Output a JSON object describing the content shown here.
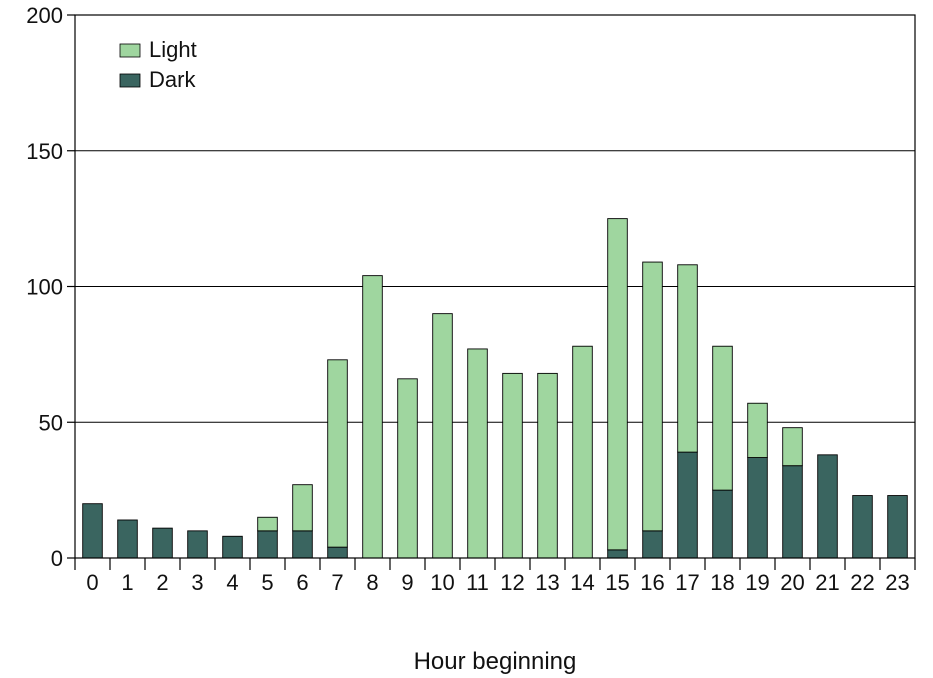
{
  "chart_data": {
    "type": "bar",
    "stacked": true,
    "title": "",
    "xlabel": "Hour beginning",
    "ylabel": "",
    "categories": [
      "0",
      "1",
      "2",
      "3",
      "4",
      "5",
      "6",
      "7",
      "8",
      "9",
      "10",
      "11",
      "12",
      "13",
      "14",
      "15",
      "16",
      "17",
      "18",
      "19",
      "20",
      "21",
      "22",
      "23"
    ],
    "ylim": [
      0,
      200
    ],
    "yticks": [
      0,
      50,
      100,
      150,
      200
    ],
    "yticklabels": [
      "0",
      "50",
      "100",
      "150",
      "200"
    ],
    "grid": "horizontal",
    "legend_position": "top-left",
    "series": [
      {
        "name": "Dark",
        "color": "#3a6560",
        "values": [
          20,
          14,
          11,
          10,
          8,
          10,
          10,
          4,
          0,
          0,
          0,
          0,
          0,
          0,
          0,
          3,
          10,
          39,
          25,
          37,
          34,
          38,
          23,
          23
        ]
      },
      {
        "name": "Light",
        "color": "#9fd69f",
        "values": [
          0,
          0,
          0,
          0,
          0,
          5,
          17,
          69,
          104,
          66,
          90,
          77,
          68,
          68,
          78,
          122,
          99,
          69,
          53,
          20,
          14,
          0,
          0,
          0
        ]
      }
    ],
    "legend_order": [
      "Light",
      "Dark"
    ]
  }
}
